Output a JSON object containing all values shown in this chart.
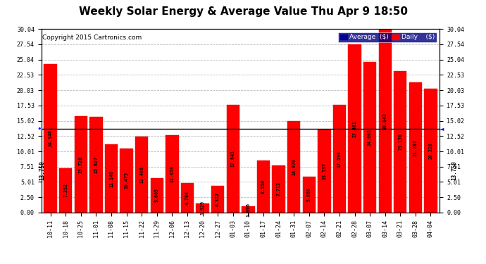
{
  "title": "Weekly Solar Energy & Average Value Thu Apr 9 18:50",
  "copyright": "Copyright 2015 Cartronics.com",
  "categories": [
    "10-11",
    "10-18",
    "10-25",
    "11-01",
    "11-08",
    "11-15",
    "11-22",
    "11-29",
    "12-06",
    "12-13",
    "12-20",
    "12-27",
    "01-03",
    "01-10",
    "01-17",
    "01-24",
    "01-31",
    "02-07",
    "02-14",
    "02-21",
    "02-28",
    "03-07",
    "03-14",
    "03-21",
    "03-28",
    "04-04"
  ],
  "values": [
    24.346,
    7.252,
    15.726,
    15.627,
    11.146,
    10.475,
    12.486,
    5.665,
    12.659,
    4.784,
    1.529,
    4.312,
    17.641,
    1.006,
    8.554,
    7.712,
    14.97,
    5.866,
    13.537,
    17.598,
    27.481,
    24.602,
    30.043,
    23.15,
    21.287,
    20.228
  ],
  "average_value": 13.75,
  "bar_color": "#FF0000",
  "average_line_color": "#000000",
  "background_color": "#FFFFFF",
  "plot_bg_color": "#FFFFFF",
  "grid_color": "#BBBBBB",
  "ylim": [
    0,
    30.04
  ],
  "yticks": [
    0.0,
    2.5,
    5.01,
    7.51,
    10.01,
    12.52,
    15.02,
    17.53,
    20.03,
    22.53,
    25.04,
    27.54,
    30.04
  ],
  "avg_label": "13.750",
  "legend_avg_color": "#000099",
  "legend_daily_color": "#FF0000",
  "title_fontsize": 11,
  "copyright_fontsize": 6.5,
  "tick_fontsize": 6,
  "value_fontsize": 4.8
}
